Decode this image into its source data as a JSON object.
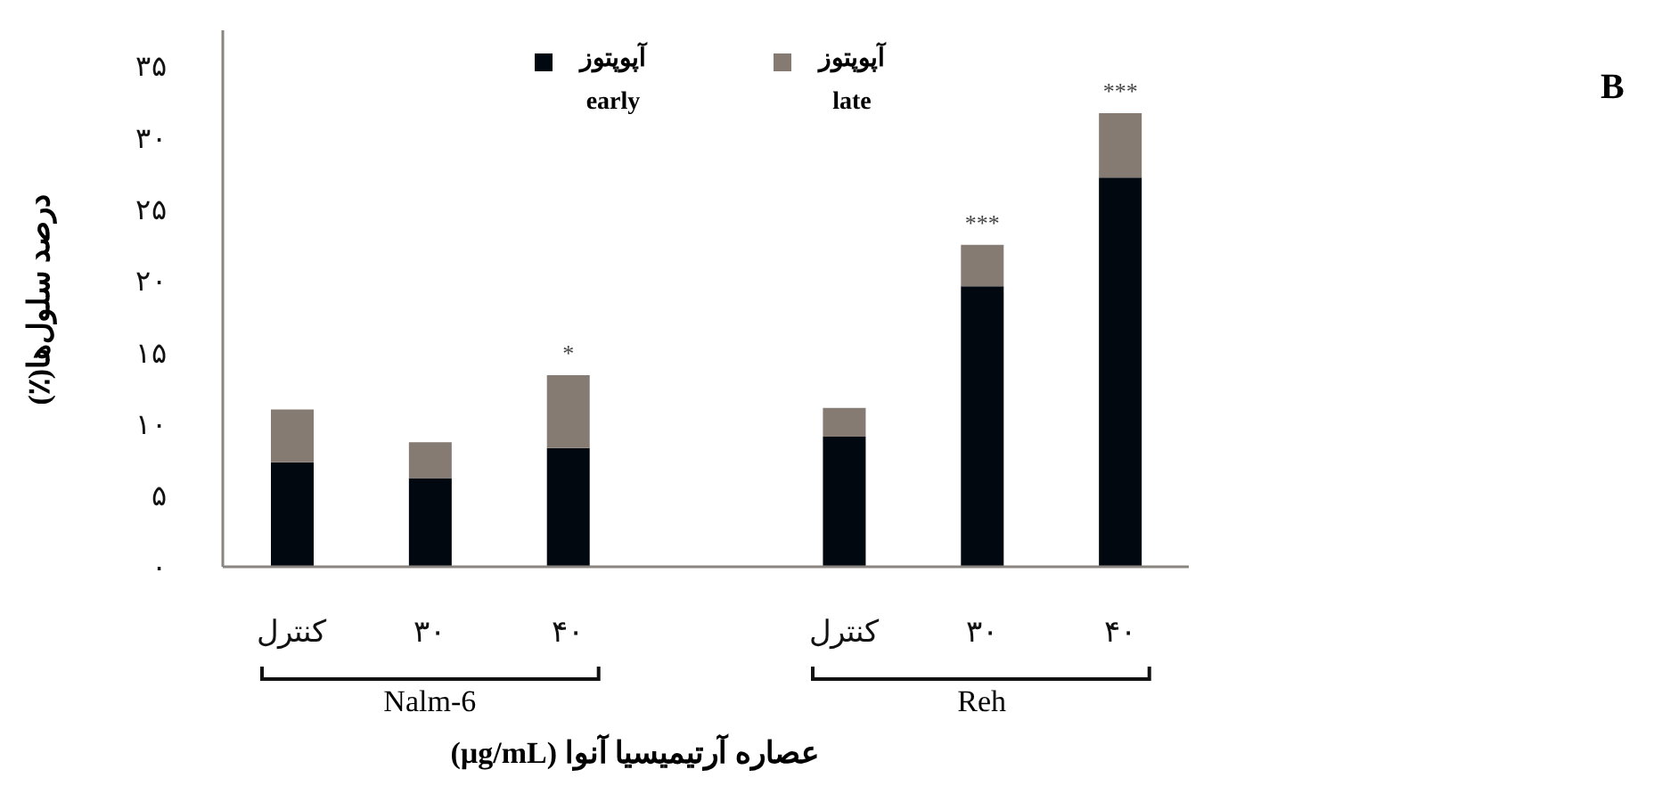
{
  "chart_data": {
    "type": "bar",
    "stacked": true,
    "title": null,
    "categories": [
      "کنترل",
      "۳۰",
      "۴۰",
      null,
      "کنترل",
      "۳۰",
      "۴۰"
    ],
    "series": [
      {
        "name": "آپوپتوز early",
        "color": "#020810",
        "values": [
          7.3,
          6.2,
          8.3,
          null,
          9.1,
          19.6,
          27.2
        ]
      },
      {
        "name": "آپوپتوز late",
        "color": "#857b73",
        "values": [
          3.7,
          2.5,
          5.1,
          null,
          2.0,
          2.9,
          4.5
        ],
        "value_labels": [
          null,
          null,
          "*",
          null,
          null,
          "***",
          "***"
        ]
      }
    ],
    "ylim": [
      0,
      37.5
    ],
    "yticks": [
      {
        "value": 0,
        "label": "۰"
      },
      {
        "value": 5,
        "label": "۵"
      },
      {
        "value": 10,
        "label": "۱۰"
      },
      {
        "value": 15,
        "label": "۱۵"
      },
      {
        "value": 20,
        "label": "۲۰"
      },
      {
        "value": 25,
        "label": "۲۵"
      },
      {
        "value": 30,
        "label": "۳۰"
      },
      {
        "value": 35,
        "label": "۳۵"
      }
    ],
    "ylabel": "درصد سلول‌ها(٪)",
    "xlabel": "عصاره آرتیمیسیا آنوا (µg/mL)",
    "annotations": [
      "Nalm-6",
      "Reh",
      "B"
    ],
    "legend": "top",
    "grid": false
  }
}
